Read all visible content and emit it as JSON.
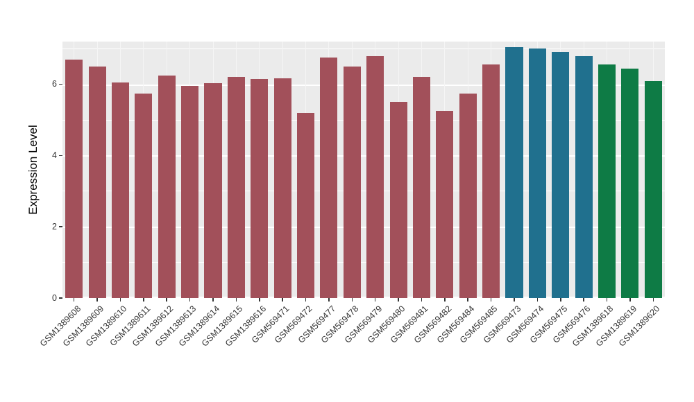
{
  "chart_data": {
    "type": "bar",
    "title": "",
    "xlabel": "",
    "ylabel": "Expression Level",
    "ylim": [
      0,
      7.2
    ],
    "yticks_major": [
      0,
      2,
      4,
      6
    ],
    "yticks_minor": [
      1,
      3,
      5,
      7
    ],
    "legend": "none",
    "grid": "on",
    "panel_bg": "#EBEBEB",
    "grid_color": "#FFFFFF",
    "tick_label_color": "#333333",
    "categories": [
      "GSM1389608",
      "GSM1389609",
      "GSM1389610",
      "GSM1389611",
      "GSM1389612",
      "GSM1389613",
      "GSM1389614",
      "GSM1389615",
      "GSM1389616",
      "GSM569471",
      "GSM569472",
      "GSM569477",
      "GSM569478",
      "GSM569479",
      "GSM569480",
      "GSM569481",
      "GSM569482",
      "GSM569484",
      "GSM569485",
      "GSM569473",
      "GSM569474",
      "GSM569475",
      "GSM569476",
      "GSM1389618",
      "GSM1389619",
      "GSM1389620"
    ],
    "values": [
      6.7,
      6.5,
      6.05,
      5.75,
      6.25,
      5.95,
      6.03,
      6.2,
      6.15,
      6.17,
      5.2,
      6.75,
      6.5,
      6.8,
      5.5,
      6.2,
      5.25,
      5.75,
      6.55,
      7.05,
      7.0,
      6.9,
      6.8,
      6.55,
      6.45,
      6.1
    ],
    "groups": [
      0,
      0,
      0,
      0,
      0,
      0,
      0,
      0,
      0,
      0,
      0,
      0,
      0,
      0,
      0,
      0,
      0,
      0,
      0,
      1,
      1,
      1,
      1,
      2,
      2,
      2
    ],
    "group_colors": [
      "#A2505A",
      "#20708E",
      "#0E7B45"
    ]
  }
}
